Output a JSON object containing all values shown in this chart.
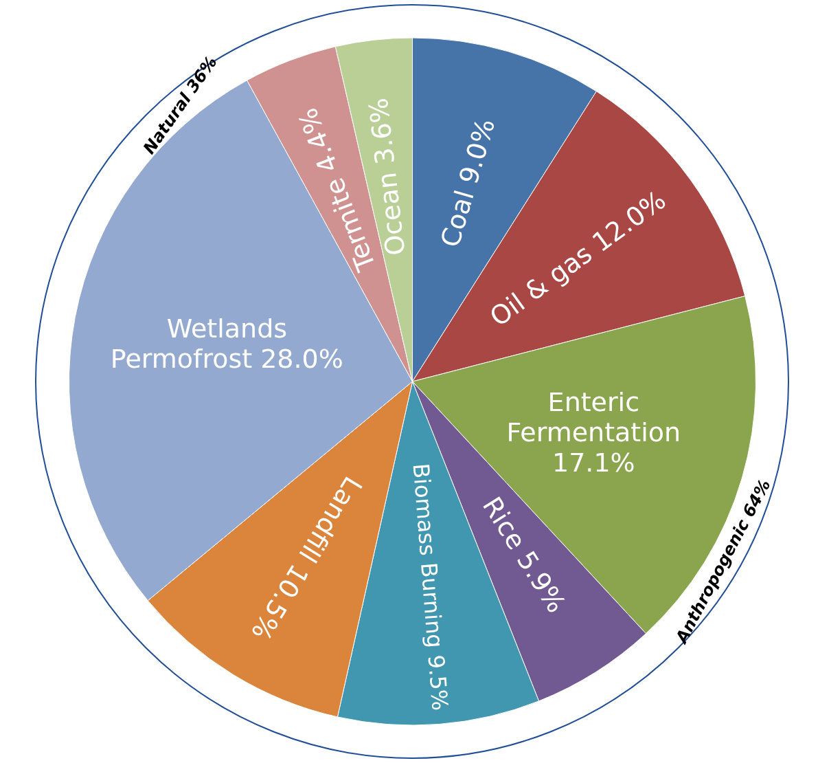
{
  "chart_data": {
    "type": "pie",
    "categories": [
      "Coal",
      "Oil & gas",
      "Enteric Fermentation",
      "Rice",
      "Biomass Burning",
      "Landfill",
      "Wetlands Permofrost",
      "Termite",
      "Ocean"
    ],
    "values": [
      9.0,
      12.0,
      17.1,
      5.9,
      9.5,
      10.5,
      28.0,
      4.4,
      3.6
    ],
    "colors": [
      "#4674a8",
      "#a94745",
      "#8aa54e",
      "#715a91",
      "#4197b0",
      "#db843c",
      "#94a9d0",
      "#d09290",
      "#b9cf96"
    ],
    "value_labels": [
      "9.0%",
      "12.0%",
      "17.1%",
      "5.9%",
      "9.5%",
      "10.5%",
      "28.0%",
      "4.4%",
      "3.6%"
    ],
    "annotations": [
      "Natural 36%",
      "Anthropogenic 64%"
    ],
    "legend": false
  }
}
